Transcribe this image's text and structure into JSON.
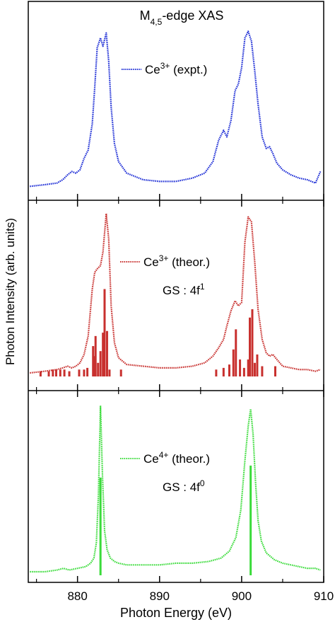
{
  "chart_data": [
    {
      "type": "line",
      "title_main": "M",
      "title_sub": "4,5",
      "title_rest": "-edge XAS",
      "series": [
        {
          "name": "Ce3+ (expt.)",
          "legend_main": "Ce",
          "legend_sup": "3+",
          "legend_rest": " (expt.)",
          "color": "#1f2fd6",
          "x": [
            874.2,
            876,
            877.5,
            878.2,
            878.8,
            879.3,
            879.8,
            880.3,
            880.8,
            881.3,
            881.8,
            882.1,
            882.4,
            882.8,
            883.1,
            883.5,
            883.8,
            884.1,
            884.5,
            885,
            886,
            888,
            890,
            892,
            894,
            895.5,
            896.5,
            897.2,
            897.8,
            898.2,
            898.7,
            899.2,
            899.6,
            900,
            900.4,
            900.8,
            901.2,
            901.6,
            902,
            902.5,
            903,
            903.4,
            903.8,
            904.3,
            905,
            906,
            907,
            908,
            909,
            909.6
          ],
          "y": [
            0.02,
            0.03,
            0.04,
            0.06,
            0.09,
            0.11,
            0.1,
            0.12,
            0.19,
            0.24,
            0.4,
            0.62,
            0.86,
            0.92,
            0.87,
            0.95,
            0.78,
            0.5,
            0.28,
            0.17,
            0.1,
            0.06,
            0.05,
            0.05,
            0.07,
            0.1,
            0.17,
            0.3,
            0.36,
            0.32,
            0.42,
            0.6,
            0.64,
            0.74,
            0.92,
            0.96,
            0.9,
            0.72,
            0.52,
            0.32,
            0.25,
            0.26,
            0.22,
            0.16,
            0.12,
            0.09,
            0.07,
            0.06,
            0.04,
            0.11
          ]
        }
      ],
      "ylim": [
        0,
        1
      ]
    },
    {
      "type": "line",
      "series": [
        {
          "name": "Ce3+ (theor.)",
          "legend_main": "Ce",
          "legend_sup": "3+",
          "legend_rest": " (theor.)",
          "note_main": "GS : 4f",
          "note_sup": "1",
          "color": "#c8302e",
          "x": [
            874.2,
            876,
            877.5,
            878.2,
            878.8,
            879.3,
            879.8,
            880.3,
            880.8,
            881.3,
            881.8,
            882.1,
            882.4,
            882.8,
            883.1,
            883.5,
            883.8,
            884.1,
            884.5,
            885,
            886,
            888,
            890,
            892,
            894,
            895.5,
            896.5,
            897.2,
            897.8,
            898.2,
            898.7,
            899.2,
            899.6,
            900,
            900.4,
            900.8,
            901.2,
            901.6,
            902,
            902.5,
            903,
            903.4,
            903.8,
            904.3,
            905,
            906,
            907,
            908,
            909,
            909.6
          ],
          "y": [
            0.0,
            0.01,
            0.02,
            0.03,
            0.04,
            0.03,
            0.04,
            0.06,
            0.11,
            0.22,
            0.5,
            0.6,
            0.62,
            0.64,
            0.72,
            0.95,
            0.8,
            0.4,
            0.18,
            0.09,
            0.05,
            0.04,
            0.03,
            0.03,
            0.04,
            0.06,
            0.1,
            0.15,
            0.2,
            0.28,
            0.37,
            0.43,
            0.4,
            0.42,
            0.78,
            0.93,
            0.9,
            0.66,
            0.38,
            0.2,
            0.12,
            0.1,
            0.11,
            0.08,
            0.04,
            0.03,
            0.02,
            0.02,
            0.01,
            0.02
          ]
        }
      ],
      "sticks": {
        "x": [
          875.5,
          876.5,
          877,
          877.4,
          877.9,
          878.4,
          879.0,
          880.2,
          880.8,
          881.2,
          881.9,
          882.0,
          882.2,
          882.5,
          882.8,
          883.1,
          883.3,
          883.6,
          883.9,
          885.3,
          896.9,
          897.8,
          898.5,
          899.0,
          899.3,
          899.8,
          900.3,
          900.8,
          901.0,
          901.3,
          901.6,
          901.9,
          902.5,
          904.1
        ],
        "y": [
          0.01,
          0.01,
          0.02,
          0.02,
          0.02,
          0.02,
          0.01,
          0.02,
          0.02,
          0.03,
          0.16,
          0.1,
          0.22,
          0.06,
          0.13,
          0.24,
          0.5,
          0.25,
          0.02,
          0.02,
          0.02,
          0.03,
          0.05,
          0.14,
          0.26,
          0.08,
          0.03,
          0.08,
          0.33,
          0.38,
          0.06,
          0.11,
          0.04,
          0.04
        ]
      },
      "ylim": [
        0,
        1
      ]
    },
    {
      "type": "line",
      "series": [
        {
          "name": "Ce4+ (theor.)",
          "legend_main": "Ce",
          "legend_sup": "4+",
          "legend_rest": " (theor.)",
          "note_main": "GS : 4f",
          "note_sup": "0",
          "color": "#3adb3a",
          "x": [
            874.2,
            876,
            877.5,
            878.3,
            879,
            880,
            881,
            881.6,
            882.0,
            882.3,
            882.55,
            882.8,
            883.05,
            883.3,
            883.6,
            884,
            884.5,
            885,
            886,
            888,
            890,
            892,
            894,
            896,
            897.5,
            898.5,
            899.3,
            899.9,
            900.4,
            900.8,
            901.1,
            901.4,
            901.7,
            902,
            902.4,
            903,
            904,
            905,
            906,
            907,
            908,
            909,
            909.6
          ],
          "y": [
            0.0,
            0.0,
            0.01,
            0.02,
            0.01,
            0.02,
            0.03,
            0.05,
            0.08,
            0.17,
            0.45,
            0.97,
            0.55,
            0.24,
            0.13,
            0.08,
            0.06,
            0.05,
            0.04,
            0.04,
            0.04,
            0.05,
            0.05,
            0.06,
            0.08,
            0.12,
            0.2,
            0.36,
            0.65,
            0.85,
            0.95,
            0.8,
            0.52,
            0.3,
            0.18,
            0.11,
            0.07,
            0.05,
            0.04,
            0.03,
            0.02,
            0.02,
            0.01
          ]
        }
      ],
      "sticks": {
        "x": [
          882.8,
          901.1
        ],
        "y": [
          0.55,
          0.62
        ]
      },
      "ylim": [
        0,
        1
      ]
    }
  ],
  "axes": {
    "xlabel": "Photon Energy (eV)",
    "ylabel": "Photon Intensity (arb. units)",
    "xlim": [
      874,
      910
    ],
    "xtick_labels": [
      "880",
      "890",
      "900",
      "910"
    ],
    "xtick_values": [
      880,
      890,
      900,
      910
    ],
    "minor_ticks": [
      875,
      885,
      895,
      905
    ]
  }
}
